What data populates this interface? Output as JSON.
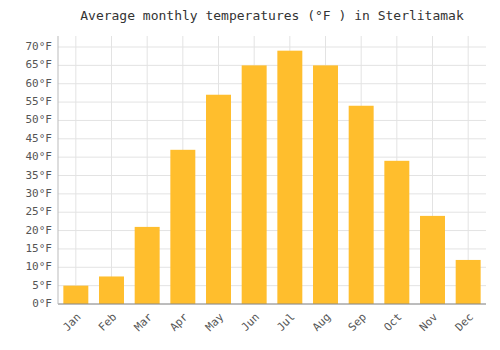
{
  "chart_data": {
    "type": "bar",
    "title": "Average monthly temperatures (°F ) in Sterlitamak",
    "categories": [
      "Jan",
      "Feb",
      "Mar",
      "Apr",
      "May",
      "Jun",
      "Jul",
      "Aug",
      "Sep",
      "Oct",
      "Nov",
      "Dec"
    ],
    "values": [
      5,
      7.5,
      21,
      42,
      57,
      65,
      69,
      65,
      54,
      39,
      24,
      12
    ],
    "color": "#FFBE2D",
    "ylim": [
      0,
      73
    ],
    "yticks": [
      {
        "value": 0,
        "label": "0°F"
      },
      {
        "value": 5,
        "label": "5°F"
      },
      {
        "value": 10,
        "label": "10°F"
      },
      {
        "value": 15,
        "label": "15°F"
      },
      {
        "value": 20,
        "label": "20°F"
      },
      {
        "value": 25,
        "label": "25°F"
      },
      {
        "value": 30,
        "label": "30°F"
      },
      {
        "value": 35,
        "label": "35°F"
      },
      {
        "value": 40,
        "label": "40°F"
      },
      {
        "value": 45,
        "label": "45°F"
      },
      {
        "value": 50,
        "label": "50°F"
      },
      {
        "value": 55,
        "label": "55°F"
      },
      {
        "value": 60,
        "label": "60°F"
      },
      {
        "value": 65,
        "label": "65°F"
      },
      {
        "value": 70,
        "label": "70°F"
      }
    ],
    "grid": true
  }
}
